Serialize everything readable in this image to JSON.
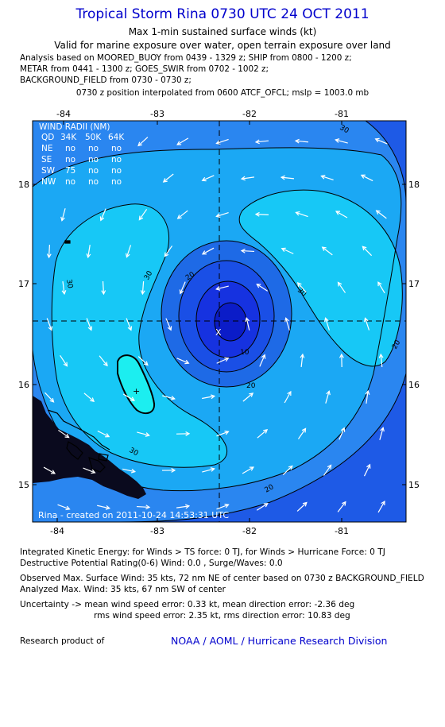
{
  "header": {
    "title": "Tropical Storm Rina 0730 UTC 24 OCT 2011",
    "subtitle1": "Max 1-min sustained surface winds (kt)",
    "subtitle2": "Valid for marine exposure over water, open terrain exposure over land",
    "analysis_lines": [
      "Analysis based on MOORED_BUOY from 0439 - 1329 z; SHIP from 0800 - 1200 z;",
      "METAR from 0441 - 1300 z; GOES_SWIR from 0702 - 1002 z;",
      "BACKGROUND_FIELD from 0730 - 0730 z;"
    ],
    "position_line": "0730 z position interpolated from 0600 ATCF_OFCL; mslp = 1003.0 mb"
  },
  "map": {
    "lon_ticks": [
      "-84",
      "-83",
      "-82",
      "-81"
    ],
    "lat_ticks": [
      "18",
      "17",
      "16",
      "15"
    ],
    "contour_labels": [
      "30",
      "30",
      "30",
      "30",
      "20",
      "20",
      "10",
      "30",
      "20",
      "20",
      "20"
    ],
    "wind_radii": {
      "title": "WIND RADII (NM)",
      "header": [
        "QD",
        "34K",
        "50K",
        "64K"
      ],
      "rows": [
        [
          "NE",
          "no",
          "no",
          "no"
        ],
        [
          "SE",
          "no",
          "no",
          "no"
        ],
        [
          "SW",
          "75",
          "no",
          "no"
        ],
        [
          "NW",
          "no",
          "no",
          "no"
        ]
      ]
    },
    "credit": "Rina - created on 2011-10-24 14:53:31 UTC",
    "colors": {
      "ocean_deep": "#1e5ae6",
      "level_10": "#2a86f0",
      "level_20": "#1ba8f4",
      "level_30": "#17c8f6",
      "max_wind": "#1ceef0",
      "core1": "#1e6ae6",
      "core2": "#1a4fe6",
      "core3": "#1632e0",
      "core4": "#0b1cc8",
      "land": "#0a0a1e"
    },
    "center_marker": "X",
    "max_wind_marker": "+"
  },
  "footer": {
    "ike_line": "Integrated Kinetic Energy: for Winds > TS force: 0 TJ, for Winds > Hurricane Force: 0 TJ",
    "dpr_line": "Destructive Potential Rating(0-6) Wind: 0.0 , Surge/Waves: 0.0",
    "obs_max_line": "Observed Max. Surface Wind: 35 kts, 72 nm NE of center based on 0730 z BACKGROUND_FIELD",
    "analyzed_max_line": "Analyzed Max. Wind: 35 kts, 67 nm SW of center",
    "uncertainty_line1": "Uncertainty -> mean wind speed error: 0.33 kt, mean direction error: -2.36 deg",
    "uncertainty_line2": "rms wind speed error: 2.35 kt, rms direction error: 10.83 deg",
    "research_label": "Research product of",
    "research_org": "NOAA / AOML / Hurricane Research Division"
  }
}
